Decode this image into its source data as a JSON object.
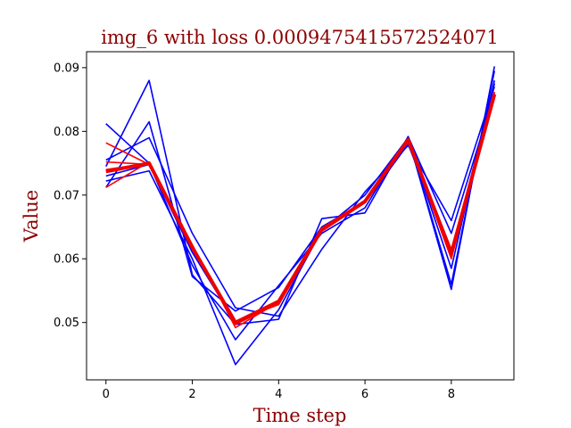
{
  "chart_data": {
    "type": "line",
    "title": "img_6 with loss 0.0009475415572524071",
    "xlabel": "Time step",
    "ylabel": "Value",
    "xlim": [
      -0.45,
      9.45
    ],
    "ylim": [
      0.041,
      0.0925
    ],
    "x_ticks": [
      0,
      2,
      4,
      6,
      8
    ],
    "y_ticks": [
      0.05,
      0.06,
      0.07,
      0.08,
      0.09
    ],
    "x": [
      0,
      1,
      2,
      3,
      4,
      5,
      6,
      7,
      8,
      9
    ],
    "grid": false,
    "colors": {
      "text": "#8b0000",
      "blue": "#0000ff",
      "red": "#ff0000",
      "thick_red": "#ee0000"
    },
    "series": [
      {
        "color": "blue",
        "values": [
          0.0812,
          0.075,
          0.059,
          0.0473,
          0.0558,
          0.064,
          0.068,
          0.079,
          0.056,
          0.0895
        ]
      },
      {
        "color": "blue",
        "values": [
          0.0745,
          0.088,
          0.0575,
          0.0497,
          0.0505,
          0.0663,
          0.0672,
          0.0792,
          0.064,
          0.086
        ]
      },
      {
        "color": "blue",
        "values": [
          0.0755,
          0.079,
          0.064,
          0.0523,
          0.051,
          0.0615,
          0.0705,
          0.0778,
          0.066,
          0.087
        ]
      },
      {
        "color": "blue",
        "values": [
          0.0722,
          0.0738,
          0.06,
          0.0434,
          0.052,
          0.0645,
          0.07,
          0.079,
          0.0552,
          0.0902
        ]
      },
      {
        "color": "blue",
        "values": [
          0.0712,
          0.0815,
          0.0572,
          0.0518,
          0.0555,
          0.065,
          0.069,
          0.0787,
          0.0585,
          0.088
        ]
      },
      {
        "color": "blue",
        "values": [
          0.073,
          0.0748,
          0.061,
          0.05,
          0.0532,
          0.0645,
          0.0688,
          0.078,
          0.0605,
          0.0875
        ]
      },
      {
        "color": "red",
        "values": [
          0.0782,
          0.0748,
          0.0618,
          0.0497,
          0.053,
          0.0645,
          0.069,
          0.0785,
          0.0605,
          0.086
        ]
      },
      {
        "color": "red",
        "values": [
          0.0712,
          0.0752,
          0.0622,
          0.0492,
          0.0532,
          0.0648,
          0.0692,
          0.0788,
          0.0612,
          0.0862
        ]
      },
      {
        "color": "red",
        "values": [
          0.074,
          0.075,
          0.0615,
          0.0502,
          0.0528,
          0.0643,
          0.0688,
          0.0786,
          0.06,
          0.0858
        ]
      },
      {
        "color": "red",
        "values": [
          0.0752,
          0.0748,
          0.062,
          0.05,
          0.0535,
          0.0646,
          0.0691,
          0.0787,
          0.0615,
          0.0855
        ]
      },
      {
        "color": "thick_red",
        "values": [
          0.0737,
          0.075,
          0.0618,
          0.05,
          0.0533,
          0.0646,
          0.069,
          0.0787,
          0.0608,
          0.0858
        ]
      }
    ]
  }
}
